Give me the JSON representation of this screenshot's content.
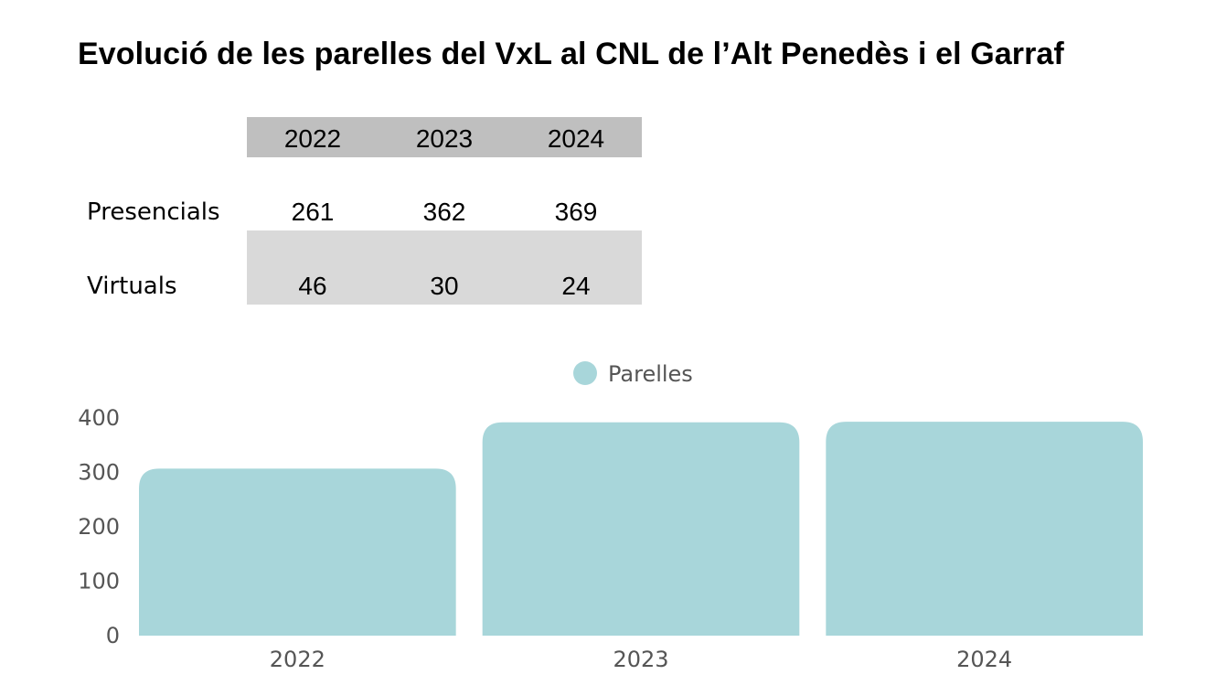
{
  "title": "Evolució de les parelles del VxL al CNL de l’Alt Penedès i el Garraf",
  "table": {
    "headers": [
      "2022",
      "2023",
      "2024"
    ],
    "rows": [
      {
        "label": "Presencials",
        "values": [
          "261",
          "362",
          "369"
        ]
      },
      {
        "label": "Virtuals",
        "values": [
          "46",
          "30",
          "24"
        ]
      }
    ]
  },
  "chart_data": {
    "type": "bar",
    "legend": "Parelles",
    "categories": [
      "2022",
      "2023",
      "2024"
    ],
    "values": [
      307,
      392,
      393
    ],
    "ylim": [
      0,
      400
    ],
    "yticks": [
      "0",
      "100",
      "200",
      "300",
      "400"
    ],
    "color": "#a8d6da"
  }
}
